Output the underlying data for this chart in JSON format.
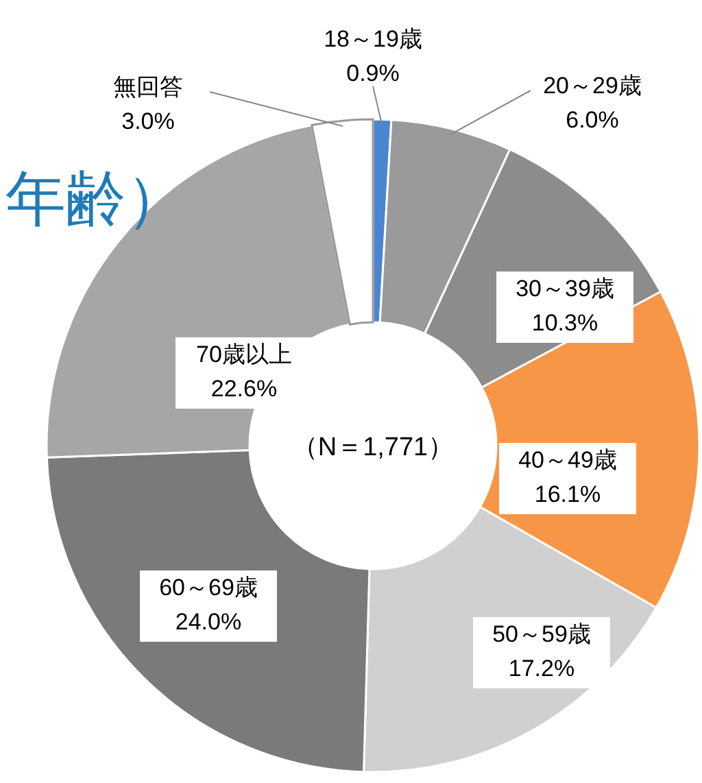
{
  "chart_data": {
    "type": "donut",
    "title": "年齢）",
    "categories": [
      "18～19歳",
      "20～29歳",
      "30～39歳",
      "40～49歳",
      "50～59歳",
      "60～69歳",
      "70歳以上",
      "無回答"
    ],
    "values": [
      0.9,
      6.0,
      10.3,
      16.1,
      17.2,
      24.0,
      22.6,
      3.0
    ],
    "value_labels": [
      "0.9%",
      "6.0%",
      "10.3%",
      "16.1%",
      "17.2%",
      "24.0%",
      "22.6%",
      "3.0%"
    ],
    "colors": [
      "#4a86d0",
      "#9a9a9a",
      "#8c8c8c",
      "#f79646",
      "#d0d0d0",
      "#7a7a7a",
      "#a6a6a6",
      "#ffffff"
    ],
    "annotations": [
      "（N＝1,771）"
    ]
  }
}
